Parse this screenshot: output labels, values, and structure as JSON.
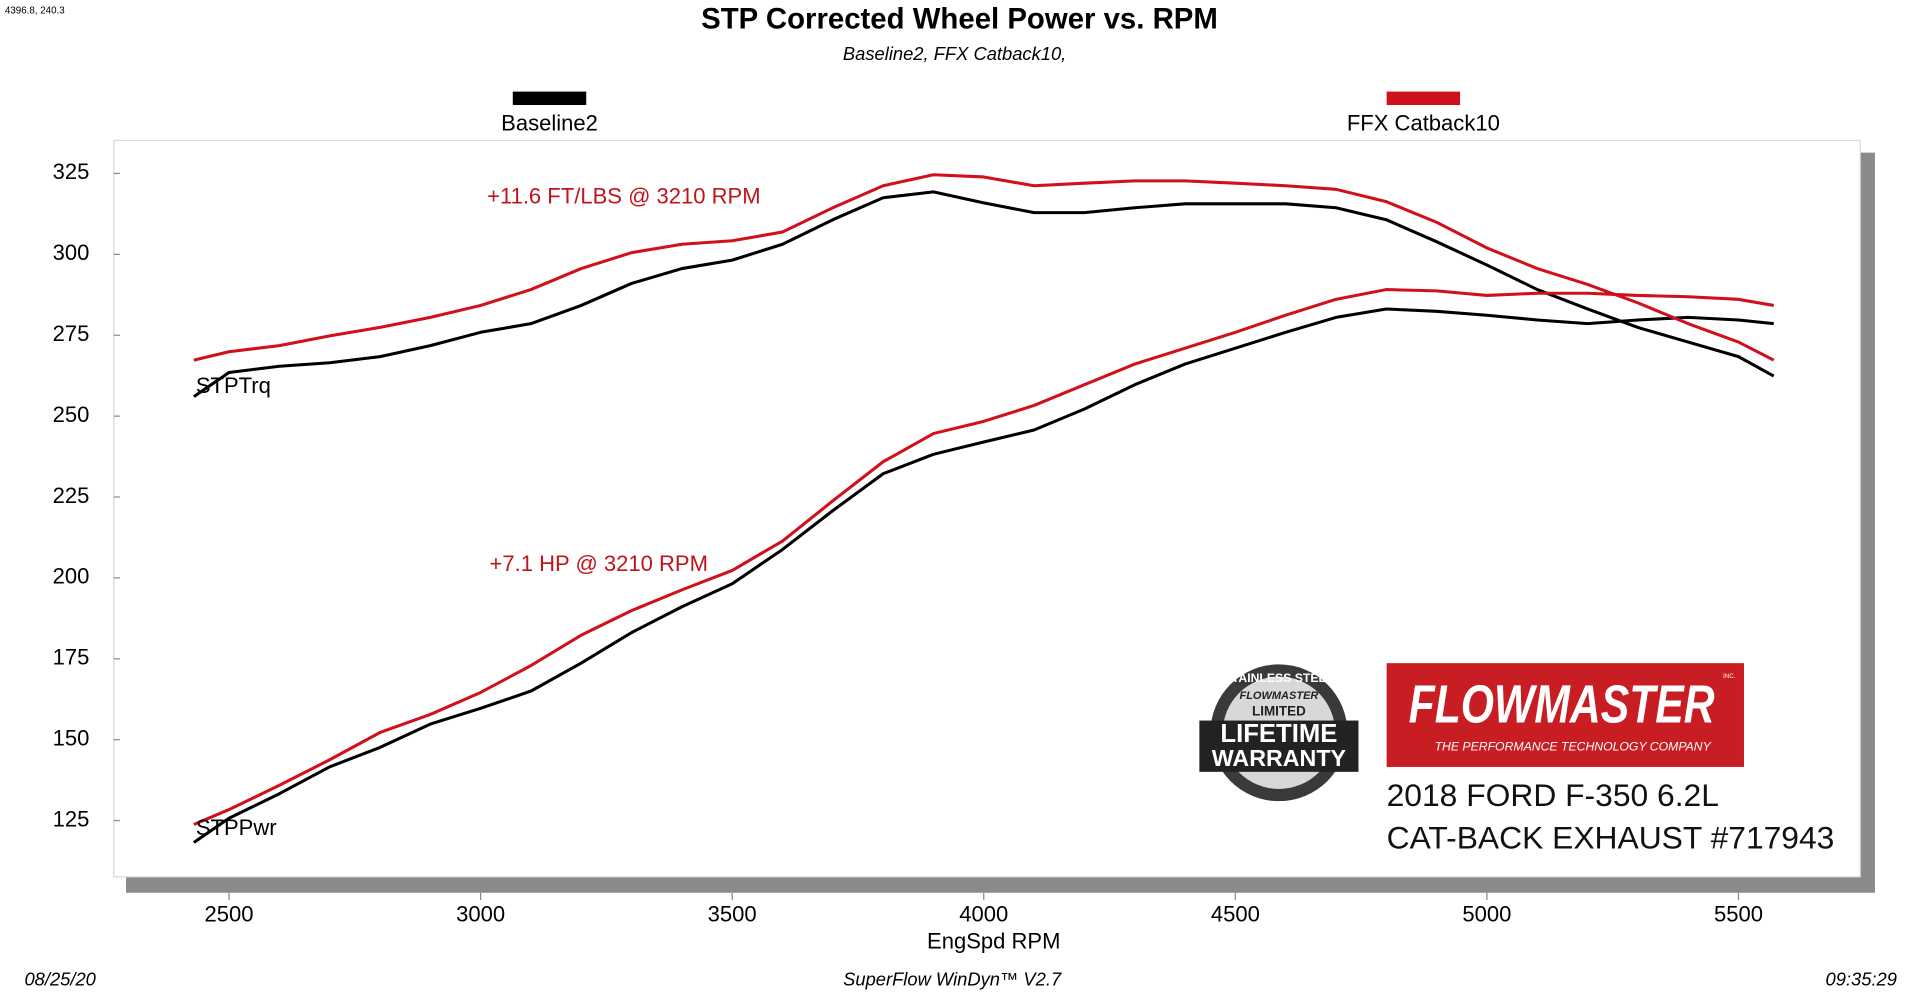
{
  "header": {
    "coords": "4396.8, 240.3"
  },
  "chart_data": {
    "type": "line",
    "title": "STP Corrected Wheel Power vs. RPM",
    "subtitle": "Baseline2, FFX Catback10,",
    "x_label": "EngSpd  RPM",
    "x": [
      2430,
      2500,
      2600,
      2700,
      2800,
      2900,
      3000,
      3100,
      3200,
      3300,
      3400,
      3500,
      3600,
      3700,
      3800,
      3900,
      4000,
      4100,
      4200,
      4300,
      4400,
      4500,
      4600,
      4700,
      4800,
      4900,
      5000,
      5100,
      5200,
      5300,
      5400,
      5500,
      5570
    ],
    "series": [
      {
        "name": "Baseline2",
        "color": "#000000",
        "values": [
          256,
          263.5,
          265.4,
          266.5,
          268.4,
          271.8,
          275.9,
          278.6,
          284.2,
          291,
          295.6,
          298.2,
          303.1,
          310.7,
          317.5,
          319.3,
          315.9,
          312.9,
          312.9,
          314.4,
          315.6,
          315.6,
          315.6,
          314.4,
          310.7,
          303.9,
          296.7,
          289.1,
          283.1,
          277.4,
          272.9,
          268.4,
          262.4
        ],
        "power": [
          118.2,
          125.7,
          133.3,
          141.6,
          147.6,
          154.8,
          159.7,
          165,
          173.7,
          183.1,
          191.1,
          198.2,
          208.8,
          220.8,
          232.2,
          238.2,
          242,
          245.7,
          252.2,
          259.7,
          266.1,
          271,
          275.9,
          280.5,
          283.1,
          282.4,
          281.2,
          279.7,
          278.6,
          279.7,
          280.5,
          279.7,
          278.6
        ]
      },
      {
        "name": "FFX Catback10",
        "color": "#d0101a",
        "values": [
          267.3,
          269.9,
          271.8,
          274.8,
          277.4,
          280.5,
          284.2,
          289.1,
          295.6,
          300.5,
          303.1,
          304.2,
          306.9,
          314.4,
          321.2,
          324.6,
          323.9,
          321.2,
          322,
          322.7,
          322.7,
          322,
          321.2,
          320.1,
          316.3,
          309.9,
          302,
          295.6,
          290.7,
          285,
          278.6,
          272.9,
          267.3
        ],
        "power": [
          123.8,
          128.4,
          135.9,
          143.8,
          152.2,
          157.8,
          164.6,
          172.9,
          182.3,
          189.9,
          196.3,
          202.3,
          211.4,
          223.8,
          235.9,
          244.6,
          248.4,
          253.3,
          259.7,
          266.1,
          271,
          275.9,
          281.2,
          286.1,
          289.1,
          288.7,
          287.3,
          288,
          288,
          287.3,
          286.9,
          286.1,
          284.2
        ]
      }
    ],
    "curve_labels": {
      "torque": "STPTrq",
      "power": "STPPwr"
    },
    "annotations": [
      "+11.6 FT/LBS @ 3210 RPM",
      "+7.1 HP @ 3210 RPM"
    ],
    "annotation_color": "#c0141c",
    "xlim": [
      2271,
      5742
    ],
    "xticks": [
      2500,
      3000,
      3500,
      4000,
      4500,
      5000,
      5500
    ],
    "ylim": [
      107.6,
      335.2
    ],
    "yticks": [
      125,
      150,
      175,
      200,
      225,
      250,
      275,
      300,
      325
    ],
    "grid": false,
    "legend": "top"
  },
  "branding": {
    "badge": [
      "STAINLESS STEEL",
      "FLOWMASTER",
      "LIMITED",
      "LIFETIME",
      "WARRANTY"
    ],
    "logo": "FLOWMASTER",
    "logo_mark": "INC.",
    "tagline": "THE PERFORMANCE TECHNOLOGY COMPANY",
    "vehicle": "2018 FORD F-350 6.2L",
    "product": "CAT-BACK EXHAUST #717943"
  },
  "footer": {
    "date": "08/25/20",
    "software": "SuperFlow WinDyn™ V2.7",
    "time": "09:35:29"
  }
}
